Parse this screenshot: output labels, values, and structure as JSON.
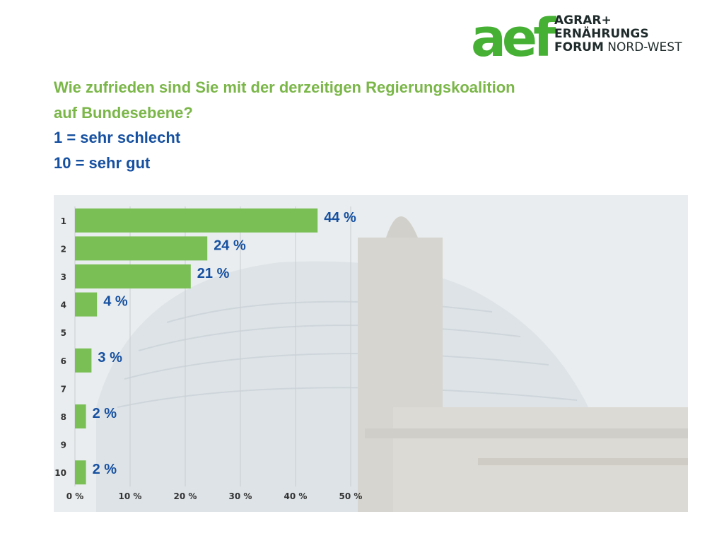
{
  "logo": {
    "mark": "aef",
    "line1": "AGRAR+",
    "line2": "ERNÄHRUNGS",
    "line3_bold": "FORUM",
    "line3_regular": "NORD-WEST"
  },
  "question": {
    "line1": "Wie zufrieden sind Sie mit der derzeitigen Regierungskoalition",
    "line2": "auf Bundesebene?",
    "scale_low": "1 = sehr schlecht",
    "scale_high": "10 = sehr gut"
  },
  "colors": {
    "bar": "#7abf56",
    "question": "#7ab648",
    "scale": "#1650a0",
    "data_label": "#1650a0",
    "brand_green": "#46b034"
  },
  "chart_data": {
    "type": "bar",
    "orientation": "horizontal",
    "categories": [
      "1",
      "2",
      "3",
      "4",
      "5",
      "6",
      "7",
      "8",
      "9",
      "10"
    ],
    "values": [
      44,
      24,
      21,
      4,
      0,
      3,
      0,
      2,
      0,
      2
    ],
    "data_labels": [
      "44 %",
      "24 %",
      "21 %",
      "4 %",
      "",
      "3 %",
      "",
      "2 %",
      "",
      "2 %"
    ],
    "xticks": [
      0,
      10,
      20,
      30,
      40,
      50
    ],
    "xtick_labels": [
      "0 %",
      "10 %",
      "20 %",
      "30 %",
      "40 %",
      "50 %"
    ],
    "xlim": [
      0,
      50
    ],
    "grid": true,
    "title": "",
    "xlabel": "",
    "ylabel": ""
  }
}
